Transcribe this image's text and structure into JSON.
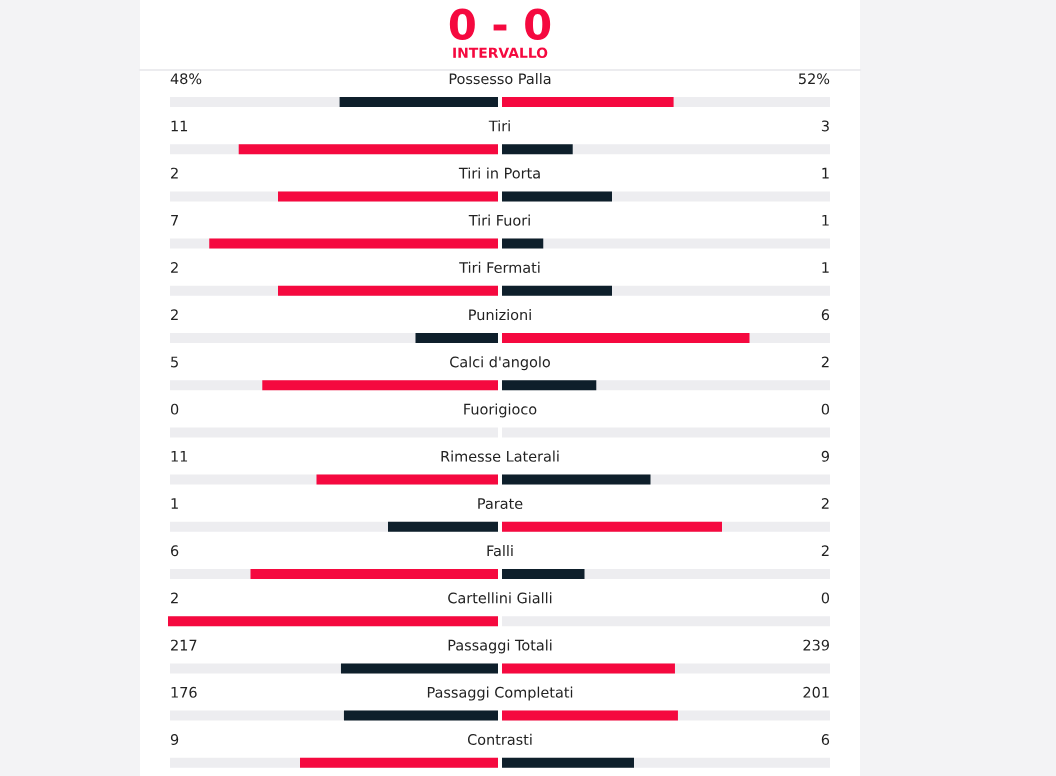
{
  "chart_data": {
    "type": "other",
    "title": "0 - 0",
    "subtitle": "INTERVALLO",
    "categories": [
      "Possesso Palla",
      "Tiri",
      "Tiri in Porta",
      "Tiri Fuori",
      "Tiri Fermati",
      "Punizioni",
      "Calci d'angolo",
      "Fuorigioco",
      "Rimesse Laterali",
      "Parate",
      "Falli",
      "Cartellini Gialli",
      "Passaggi Totali",
      "Passaggi Completati",
      "Contrasti"
    ],
    "series": [
      {
        "values": [
          48,
          11,
          2,
          7,
          2,
          2,
          5,
          0,
          11,
          1,
          6,
          2,
          217,
          176,
          9
        ],
        "value_labels": [
          "48%",
          "11",
          "2",
          "7",
          "2",
          "2",
          "5",
          "0",
          "11",
          "1",
          "6",
          "2",
          "217",
          "176",
          "9"
        ],
        "colors": [
          "#0e1f2b",
          "#f5093f",
          "#f5093f",
          "#f5093f",
          "#f5093f",
          "#0e1f2b",
          "#f5093f",
          "#0e1f2b",
          "#f5093f",
          "#0e1f2b",
          "#f5093f",
          "#f5093f",
          "#0e1f2b",
          "#0e1f2b",
          "#f5093f"
        ]
      },
      {
        "values": [
          52,
          3,
          1,
          1,
          1,
          6,
          2,
          0,
          9,
          2,
          2,
          0,
          239,
          201,
          6
        ],
        "value_labels": [
          "52%",
          "3",
          "1",
          "1",
          "1",
          "6",
          "2",
          "0",
          "9",
          "2",
          "2",
          "0",
          "239",
          "201",
          "6"
        ],
        "colors": [
          "#f5093f",
          "#0e1f2b",
          "#0e1f2b",
          "#0e1f2b",
          "#0e1f2b",
          "#f5093f",
          "#0e1f2b",
          "#0e1f2b",
          "#0e1f2b",
          "#f5093f",
          "#0e1f2b",
          "#0e1f2b",
          "#f5093f",
          "#f5093f",
          "#0e1f2b"
        ]
      }
    ]
  }
}
